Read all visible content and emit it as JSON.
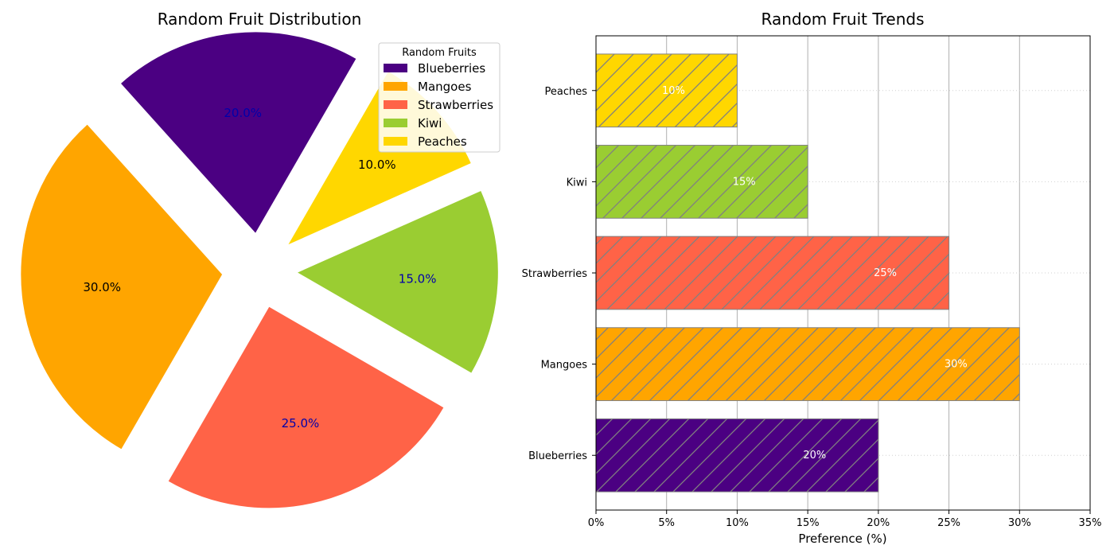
{
  "chart_data": [
    {
      "type": "pie",
      "title": "Random Fruit Distribution",
      "labels": [
        "Blueberries",
        "Mangoes",
        "Strawberries",
        "Kiwi",
        "Peaches"
      ],
      "values": [
        20,
        30,
        25,
        15,
        10
      ],
      "value_labels": [
        "20.0%",
        "30.0%",
        "25.0%",
        "15.0%",
        "10.0%"
      ],
      "colors": [
        "#4b0082",
        "#ffa500",
        "#ff6347",
        "#9acd32",
        "#ffd700"
      ],
      "label_colors": [
        "#0000aa",
        "#000000",
        "#0000aa",
        "#0000aa",
        "#000000"
      ],
      "exploded": true,
      "legend": {
        "title": "Random Fruits",
        "placement": "top-right",
        "entries": [
          "Blueberries",
          "Mangoes",
          "Strawberries",
          "Kiwi",
          "Peaches"
        ]
      }
    },
    {
      "type": "bar",
      "orientation": "horizontal",
      "title": "Random Fruit Trends",
      "categories": [
        "Blueberries",
        "Mangoes",
        "Strawberries",
        "Kiwi",
        "Peaches"
      ],
      "values": [
        20,
        30,
        25,
        15,
        10
      ],
      "value_labels": [
        "20%",
        "30%",
        "25%",
        "15%",
        "10%"
      ],
      "colors": [
        "#4b0082",
        "#ffa500",
        "#ff6347",
        "#9acd32",
        "#ffd700"
      ],
      "hatch": "diagonal",
      "hatch_color": "#808080",
      "xlabel": "Preference (%)",
      "ylabel": "",
      "xlim": [
        0,
        35
      ],
      "xticks": [
        0,
        5,
        10,
        15,
        20,
        25,
        30,
        35
      ],
      "xtick_labels": [
        "0%",
        "5%",
        "10%",
        "15%",
        "20%",
        "25%",
        "30%",
        "35%"
      ],
      "grid": true
    }
  ]
}
